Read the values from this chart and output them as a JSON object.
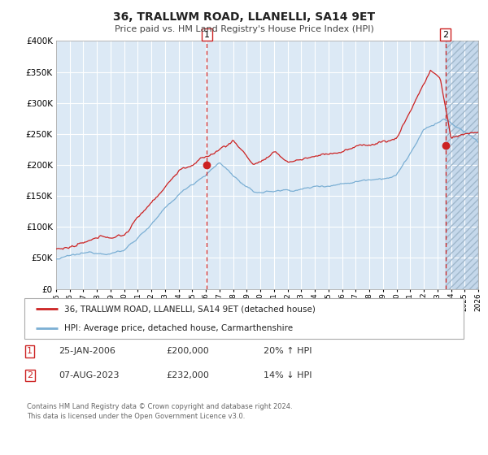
{
  "title": "36, TRALLWM ROAD, LLANELLI, SA14 9ET",
  "subtitle": "Price paid vs. HM Land Registry's House Price Index (HPI)",
  "ylim": [
    0,
    400000
  ],
  "xlim_start": 1995.0,
  "xlim_end": 2026.0,
  "hpi_color": "#7bafd4",
  "price_color": "#cc2222",
  "bg_color": "#dce9f5",
  "grid_color": "#ffffff",
  "sale1_x": 2006.07,
  "sale1_y": 200000,
  "sale2_x": 2023.59,
  "sale2_y": 232000,
  "sale1_label": "25-JAN-2006",
  "sale1_price": "£200,000",
  "sale1_hpi": "20% ↑ HPI",
  "sale2_label": "07-AUG-2023",
  "sale2_price": "£232,000",
  "sale2_hpi": "14% ↓ HPI",
  "legend_line1": "36, TRALLWM ROAD, LLANELLI, SA14 9ET (detached house)",
  "legend_line2": "HPI: Average price, detached house, Carmarthenshire",
  "footer": "Contains HM Land Registry data © Crown copyright and database right 2024.\nThis data is licensed under the Open Government Licence v3.0.",
  "ytick_labels": [
    "£0",
    "£50K",
    "£100K",
    "£150K",
    "£200K",
    "£250K",
    "£300K",
    "£350K",
    "£400K"
  ],
  "ytick_values": [
    0,
    50000,
    100000,
    150000,
    200000,
    250000,
    300000,
    350000,
    400000
  ]
}
